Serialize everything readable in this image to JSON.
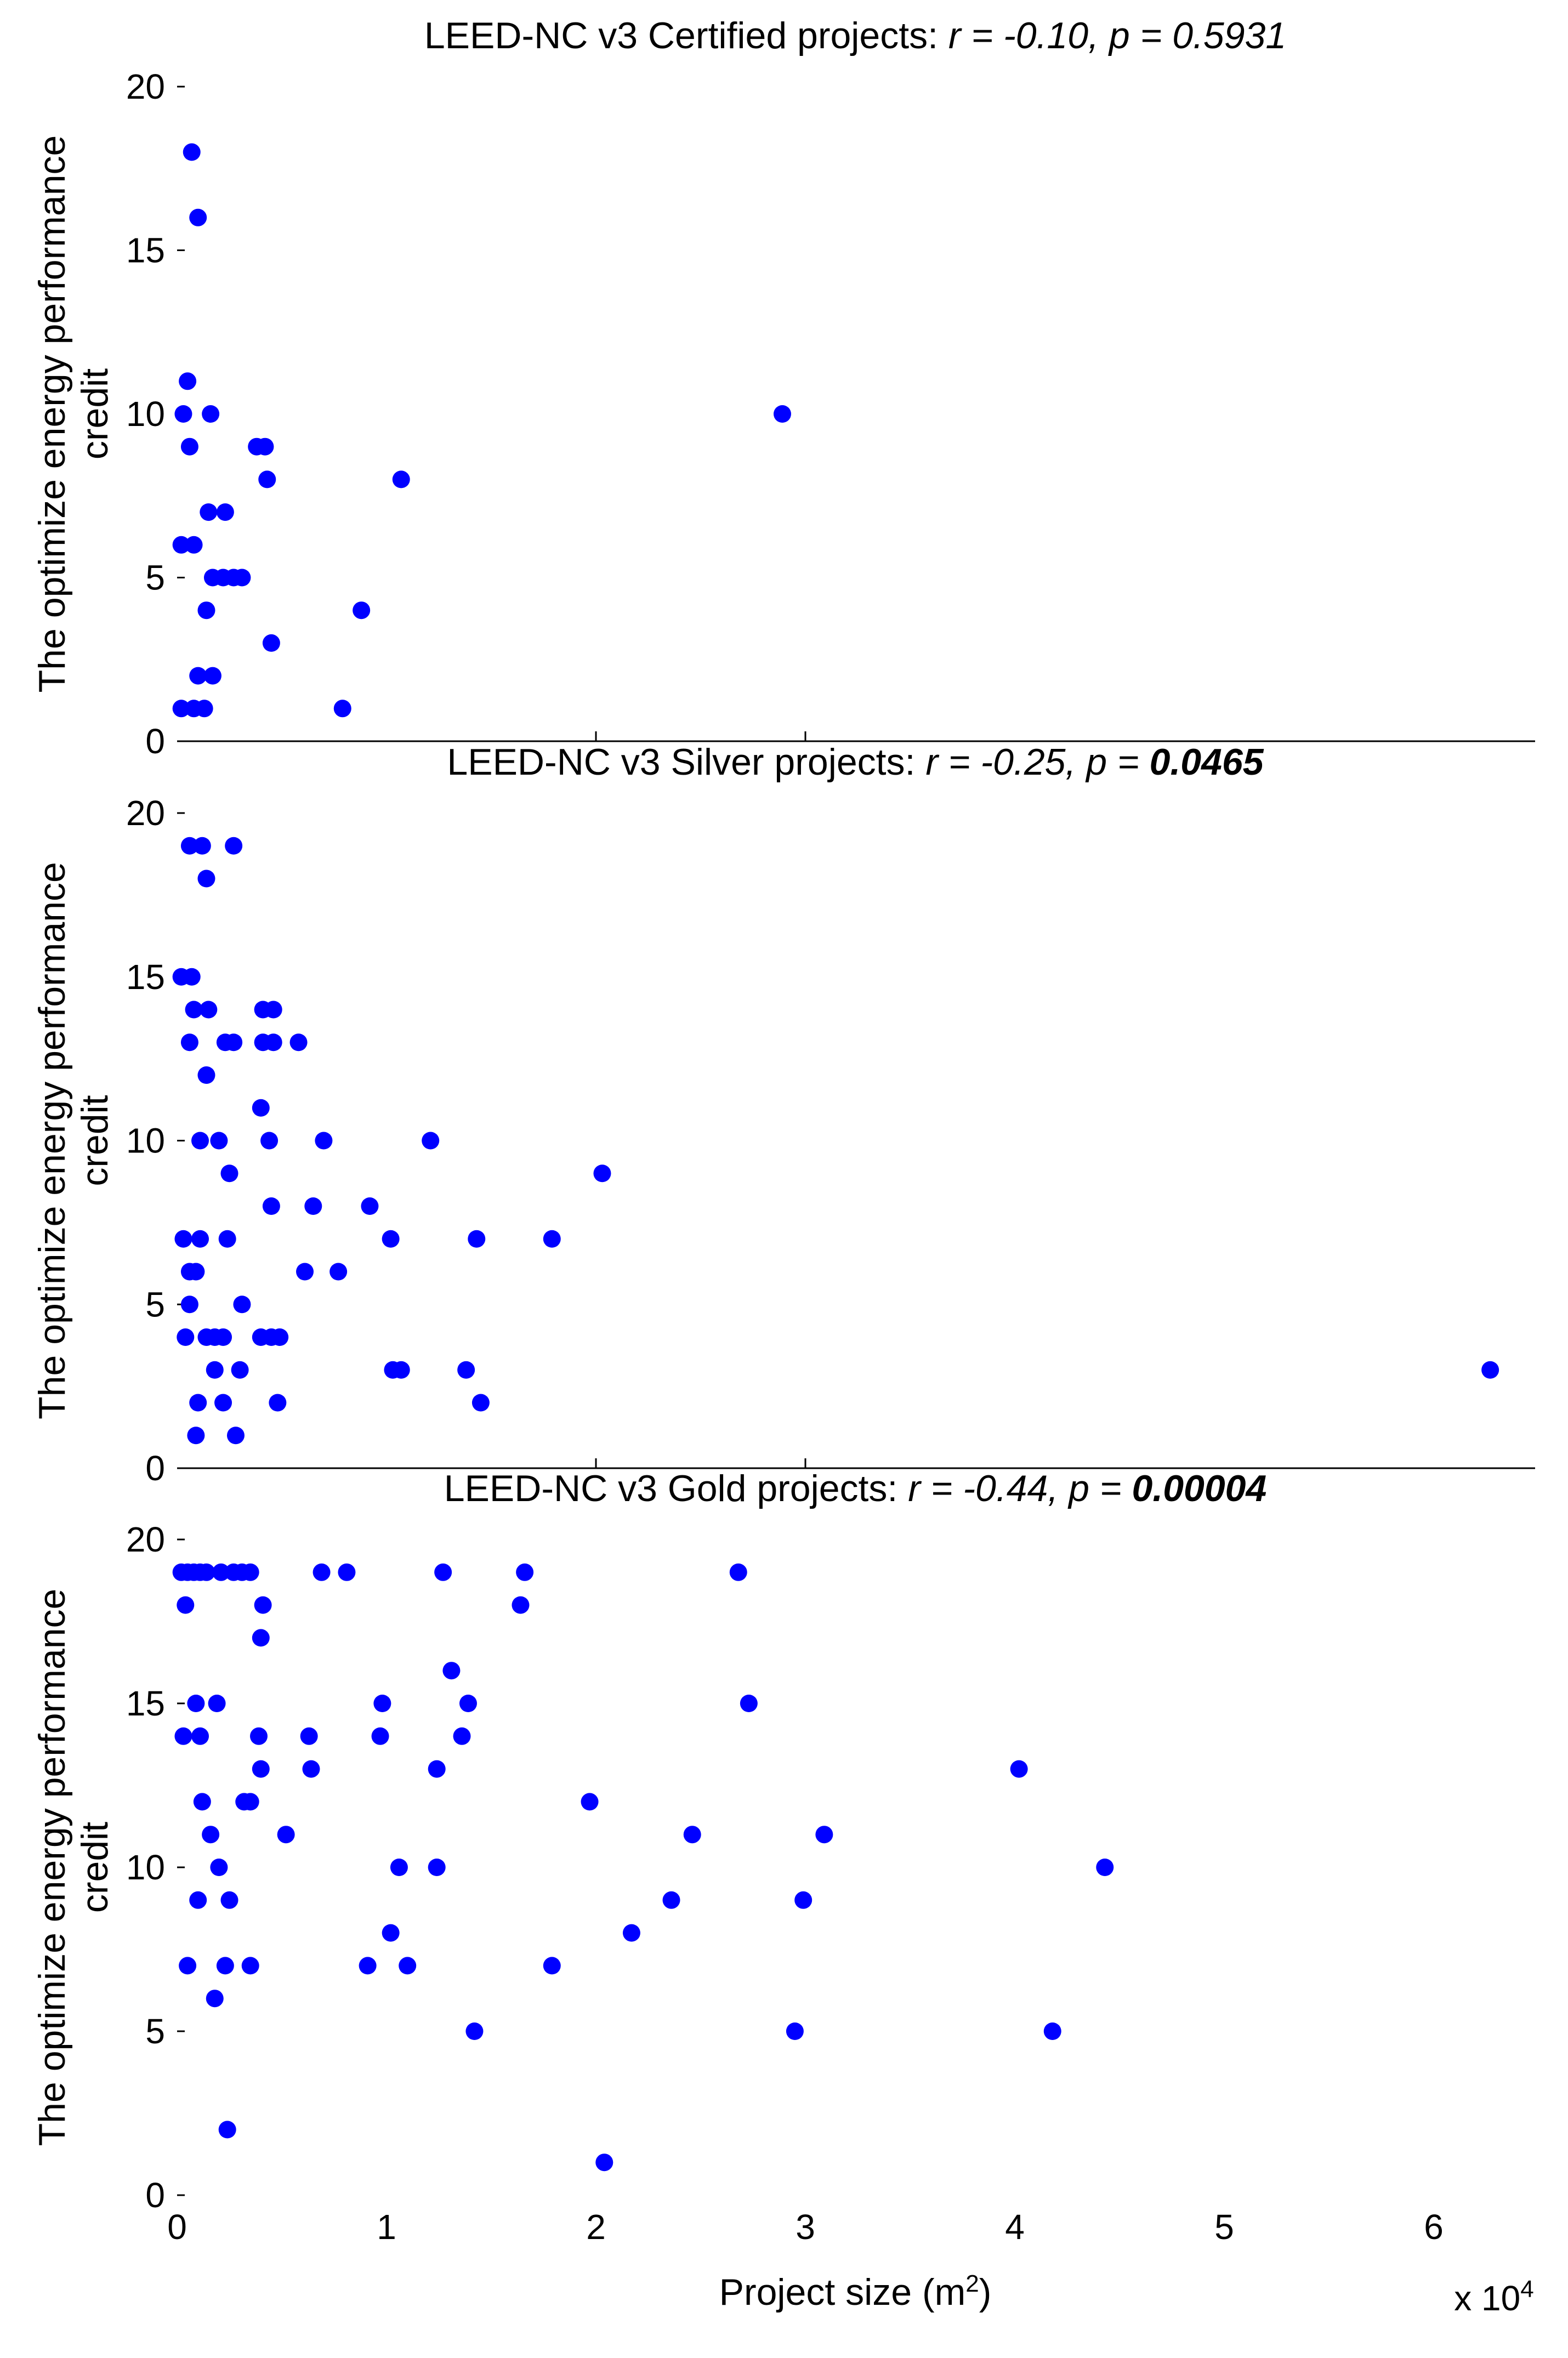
{
  "chart_data": [
    {
      "type": "scatter",
      "name": "certified",
      "title_prefix": "LEED-NC v3 Certified projects:",
      "stat_r_label": "r",
      "stat_r_value": "-0.10",
      "stat_p_label": "p",
      "stat_p_value": "0.5931",
      "p_bold": false,
      "ylabel_line1": "The optimize energy performance",
      "ylabel_line2": "credit",
      "ylim": [
        0,
        20
      ],
      "yticks": [
        "0",
        "5",
        "10",
        "15",
        "20"
      ],
      "xlim": [
        0,
        6.5
      ],
      "points": [
        {
          "x": 0.07,
          "y": 18
        },
        {
          "x": 0.1,
          "y": 16
        },
        {
          "x": 0.05,
          "y": 11
        },
        {
          "x": 0.03,
          "y": 10
        },
        {
          "x": 0.16,
          "y": 10
        },
        {
          "x": 0.06,
          "y": 9
        },
        {
          "x": 0.38,
          "y": 9
        },
        {
          "x": 0.42,
          "y": 9
        },
        {
          "x": 0.43,
          "y": 8
        },
        {
          "x": 1.07,
          "y": 8
        },
        {
          "x": 0.15,
          "y": 7
        },
        {
          "x": 0.23,
          "y": 7
        },
        {
          "x": 0.02,
          "y": 6
        },
        {
          "x": 0.08,
          "y": 6
        },
        {
          "x": 0.17,
          "y": 5
        },
        {
          "x": 0.22,
          "y": 5
        },
        {
          "x": 0.27,
          "y": 5
        },
        {
          "x": 0.31,
          "y": 5
        },
        {
          "x": 0.14,
          "y": 4
        },
        {
          "x": 0.88,
          "y": 4
        },
        {
          "x": 0.45,
          "y": 3
        },
        {
          "x": 0.1,
          "y": 2
        },
        {
          "x": 0.17,
          "y": 2
        },
        {
          "x": 0.02,
          "y": 1
        },
        {
          "x": 0.08,
          "y": 1
        },
        {
          "x": 0.13,
          "y": 1
        },
        {
          "x": 0.79,
          "y": 1
        },
        {
          "x": 2.89,
          "y": 10
        }
      ]
    },
    {
      "type": "scatter",
      "name": "silver",
      "title_prefix": "LEED-NC v3 Silver projects:",
      "stat_r_label": "r",
      "stat_r_value": "-0.25",
      "stat_p_label": "p",
      "stat_p_value": "0.0465",
      "p_bold": true,
      "ylabel_line1": "The optimize energy performance",
      "ylabel_line2": "credit",
      "ylim": [
        0,
        20
      ],
      "yticks": [
        "0",
        "5",
        "10",
        "15",
        "20"
      ],
      "xlim": [
        0,
        6.5
      ],
      "points": [
        {
          "x": 0.06,
          "y": 19
        },
        {
          "x": 0.12,
          "y": 19
        },
        {
          "x": 0.27,
          "y": 19
        },
        {
          "x": 0.14,
          "y": 18
        },
        {
          "x": 0.02,
          "y": 15
        },
        {
          "x": 0.07,
          "y": 15
        },
        {
          "x": 0.08,
          "y": 14
        },
        {
          "x": 0.15,
          "y": 14
        },
        {
          "x": 0.41,
          "y": 14
        },
        {
          "x": 0.46,
          "y": 14
        },
        {
          "x": 0.06,
          "y": 13
        },
        {
          "x": 0.23,
          "y": 13
        },
        {
          "x": 0.27,
          "y": 13
        },
        {
          "x": 0.41,
          "y": 13
        },
        {
          "x": 0.46,
          "y": 13
        },
        {
          "x": 0.58,
          "y": 13
        },
        {
          "x": 0.14,
          "y": 12
        },
        {
          "x": 0.4,
          "y": 11
        },
        {
          "x": 0.11,
          "y": 10
        },
        {
          "x": 0.2,
          "y": 10
        },
        {
          "x": 0.44,
          "y": 10
        },
        {
          "x": 0.7,
          "y": 10
        },
        {
          "x": 1.21,
          "y": 10
        },
        {
          "x": 0.25,
          "y": 9
        },
        {
          "x": 2.03,
          "y": 9
        },
        {
          "x": 0.45,
          "y": 8
        },
        {
          "x": 0.65,
          "y": 8
        },
        {
          "x": 0.92,
          "y": 8
        },
        {
          "x": 0.03,
          "y": 7
        },
        {
          "x": 0.11,
          "y": 7
        },
        {
          "x": 0.24,
          "y": 7
        },
        {
          "x": 1.02,
          "y": 7
        },
        {
          "x": 1.43,
          "y": 7
        },
        {
          "x": 1.79,
          "y": 7
        },
        {
          "x": 0.06,
          "y": 6
        },
        {
          "x": 0.09,
          "y": 6
        },
        {
          "x": 0.61,
          "y": 6
        },
        {
          "x": 0.77,
          "y": 6
        },
        {
          "x": 0.06,
          "y": 5
        },
        {
          "x": 0.31,
          "y": 5
        },
        {
          "x": 0.04,
          "y": 4
        },
        {
          "x": 0.14,
          "y": 4
        },
        {
          "x": 0.18,
          "y": 4
        },
        {
          "x": 0.22,
          "y": 4
        },
        {
          "x": 0.4,
          "y": 4
        },
        {
          "x": 0.45,
          "y": 4
        },
        {
          "x": 0.49,
          "y": 4
        },
        {
          "x": 0.18,
          "y": 3
        },
        {
          "x": 0.3,
          "y": 3
        },
        {
          "x": 1.03,
          "y": 3
        },
        {
          "x": 1.07,
          "y": 3
        },
        {
          "x": 1.38,
          "y": 3
        },
        {
          "x": 6.27,
          "y": 3
        },
        {
          "x": 0.1,
          "y": 2
        },
        {
          "x": 0.22,
          "y": 2
        },
        {
          "x": 0.48,
          "y": 2
        },
        {
          "x": 1.45,
          "y": 2
        },
        {
          "x": 0.09,
          "y": 1
        },
        {
          "x": 0.28,
          "y": 1
        }
      ]
    },
    {
      "type": "scatter",
      "name": "gold",
      "title_prefix": "LEED-NC v3 Gold projects:",
      "stat_r_label": "r",
      "stat_r_value": "-0.44",
      "stat_p_label": "p",
      "stat_p_value": "0.00004",
      "p_bold": true,
      "ylabel_line1": "The optimize energy performance",
      "ylabel_line2": "credit",
      "ylim": [
        0,
        20
      ],
      "yticks": [
        "0",
        "5",
        "10",
        "15",
        "20"
      ],
      "xlim": [
        0,
        6.5
      ],
      "xticks": [
        "0",
        "1",
        "2",
        "3",
        "4",
        "5",
        "6"
      ],
      "xlabel_main": "Project size (m",
      "xlabel_sup": "2",
      "xlabel_end": ")",
      "x_multiplier_base": "x 10",
      "x_multiplier_exp": "4",
      "points": [
        {
          "x": 0.02,
          "y": 19
        },
        {
          "x": 0.05,
          "y": 19
        },
        {
          "x": 0.08,
          "y": 19
        },
        {
          "x": 0.11,
          "y": 19
        },
        {
          "x": 0.14,
          "y": 19
        },
        {
          "x": 0.21,
          "y": 19
        },
        {
          "x": 0.27,
          "y": 19
        },
        {
          "x": 0.31,
          "y": 19
        },
        {
          "x": 0.35,
          "y": 19
        },
        {
          "x": 0.69,
          "y": 19
        },
        {
          "x": 0.81,
          "y": 19
        },
        {
          "x": 1.27,
          "y": 19
        },
        {
          "x": 1.66,
          "y": 19
        },
        {
          "x": 2.68,
          "y": 19
        },
        {
          "x": 0.04,
          "y": 18
        },
        {
          "x": 0.41,
          "y": 18
        },
        {
          "x": 1.64,
          "y": 18
        },
        {
          "x": 0.4,
          "y": 17
        },
        {
          "x": 1.31,
          "y": 16
        },
        {
          "x": 0.09,
          "y": 15
        },
        {
          "x": 0.19,
          "y": 15
        },
        {
          "x": 0.98,
          "y": 15
        },
        {
          "x": 1.39,
          "y": 15
        },
        {
          "x": 2.73,
          "y": 15
        },
        {
          "x": 0.03,
          "y": 14
        },
        {
          "x": 0.11,
          "y": 14
        },
        {
          "x": 0.39,
          "y": 14
        },
        {
          "x": 0.63,
          "y": 14
        },
        {
          "x": 0.97,
          "y": 14
        },
        {
          "x": 1.36,
          "y": 14
        },
        {
          "x": 0.4,
          "y": 13
        },
        {
          "x": 0.64,
          "y": 13
        },
        {
          "x": 1.24,
          "y": 13
        },
        {
          "x": 4.02,
          "y": 13
        },
        {
          "x": 0.12,
          "y": 12
        },
        {
          "x": 0.32,
          "y": 12
        },
        {
          "x": 0.35,
          "y": 12
        },
        {
          "x": 1.97,
          "y": 12
        },
        {
          "x": 0.16,
          "y": 11
        },
        {
          "x": 0.52,
          "y": 11
        },
        {
          "x": 2.46,
          "y": 11
        },
        {
          "x": 3.09,
          "y": 11
        },
        {
          "x": 0.2,
          "y": 10
        },
        {
          "x": 1.06,
          "y": 10
        },
        {
          "x": 1.24,
          "y": 10
        },
        {
          "x": 4.43,
          "y": 10
        },
        {
          "x": 0.1,
          "y": 9
        },
        {
          "x": 0.25,
          "y": 9
        },
        {
          "x": 2.36,
          "y": 9
        },
        {
          "x": 2.99,
          "y": 9
        },
        {
          "x": 1.02,
          "y": 8
        },
        {
          "x": 2.17,
          "y": 8
        },
        {
          "x": 0.05,
          "y": 7
        },
        {
          "x": 0.23,
          "y": 7
        },
        {
          "x": 0.35,
          "y": 7
        },
        {
          "x": 0.91,
          "y": 7
        },
        {
          "x": 1.1,
          "y": 7
        },
        {
          "x": 1.79,
          "y": 7
        },
        {
          "x": 0.18,
          "y": 6
        },
        {
          "x": 1.42,
          "y": 5
        },
        {
          "x": 2.95,
          "y": 5
        },
        {
          "x": 4.18,
          "y": 5
        },
        {
          "x": 0.24,
          "y": 2
        },
        {
          "x": 2.04,
          "y": 1
        }
      ]
    }
  ]
}
